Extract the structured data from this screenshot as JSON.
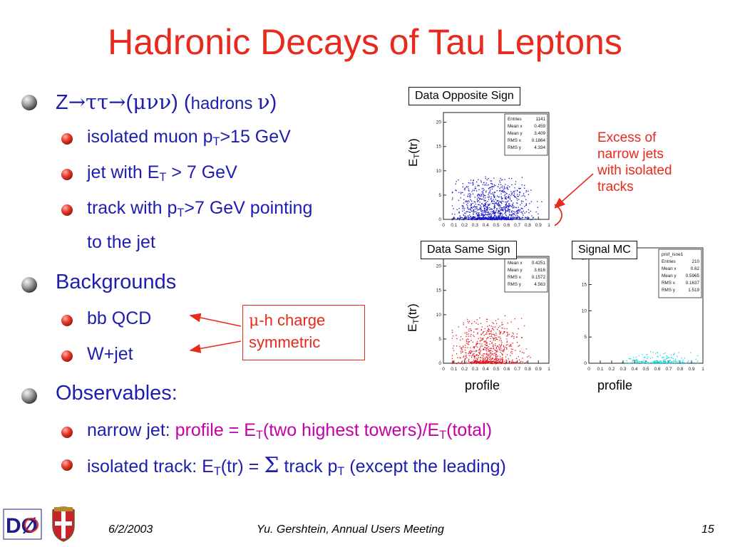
{
  "title": "Hadronic Decays of Tau Leptons",
  "bullets": {
    "z_decay": {
      "Z": "Z",
      "arrow1": "→",
      "tautau": "ττ",
      "arrow2": "→",
      "open1": "(",
      "munu": "μνν",
      "mid": ") (",
      "hadrons": "hadrons ",
      "nu": "ν",
      "close": ")"
    },
    "muon": {
      "text": "isolated muon p",
      "sub": "T",
      "rest": ">15 GeV"
    },
    "jet": {
      "text": "jet with E",
      "sub": "T",
      "rest": " > 7 GeV"
    },
    "track_line1": {
      "text": "track with p",
      "sub": "T",
      "rest": ">7 GeV pointing"
    },
    "track_line2": "to the jet",
    "backgrounds": "Backgrounds",
    "bb_qcd": "bb QCD",
    "wjet": "W+jet",
    "observables": "Observables:",
    "narrow_jet": {
      "label": "narrow jet: ",
      "profile": "profile = E",
      "sub1": "T",
      "mid": "(two highest towers)/E",
      "sub2": "T",
      "end": "(total)"
    },
    "isolated_track": {
      "label": "isolated track:  E",
      "sub1": "T",
      "mid": "(tr) = ",
      "sigma": "Σ",
      "rest": " track p",
      "sub2": "T",
      "end": " (except the leading)"
    }
  },
  "charge_box": {
    "mu": "μ",
    "line1": "-h charge",
    "line2": "symmetric"
  },
  "excess_note": [
    "Excess of",
    "narrow jets",
    "with isolated",
    "tracks"
  ],
  "plots": {
    "opposite": {
      "label": "Data Opposite Sign",
      "axis_label": "E",
      "axis_sub": "T",
      "axis_end": "(tr)",
      "stats": [
        [
          "Entries",
          "1141"
        ],
        [
          "Mean x",
          "0.459"
        ],
        [
          "Mean y",
          "3.409"
        ],
        [
          "RMS x",
          "0.1864"
        ],
        [
          "RMS y",
          "4.334"
        ]
      ],
      "color": "#1414c8"
    },
    "same": {
      "label": "Data Same Sign",
      "axis_label": "E",
      "axis_sub": "T",
      "axis_end": "(tr)",
      "stats": [
        [
          "Mean x",
          "0.4251"
        ],
        [
          "Mean y",
          "3.616"
        ],
        [
          "RMS x",
          "0.1572"
        ],
        [
          "RMS y",
          "4.563"
        ]
      ],
      "color": "#e8141a",
      "caption": "profile"
    },
    "signal": {
      "label": "Signal MC",
      "hist_name": "prof_isoe1",
      "stats": [
        [
          "Entries",
          "210"
        ],
        [
          "Mean x",
          "0.62"
        ],
        [
          "Mean y",
          "0.5965"
        ],
        [
          "RMS x",
          "0.1637"
        ],
        [
          "RMS y",
          "1.519"
        ]
      ],
      "color": "#14d8e0",
      "caption": "profile"
    },
    "y_ticks": [
      "0",
      "5",
      "10",
      "15",
      "20"
    ],
    "x_ticks": [
      "0",
      "0.1",
      "0.2",
      "0.3",
      "0.4",
      "0.5",
      "0.6",
      "0.7",
      "0.8",
      "0.9",
      "1"
    ]
  },
  "footer": {
    "date": "6/2/2003",
    "event": "Yu. Gershtein, Annual Users Meeting",
    "page": "15"
  },
  "logos": {
    "dzero": "DØ"
  },
  "colors": {
    "title": "#e8291c",
    "text": "#1d1db0",
    "accent": "#c400a8"
  }
}
